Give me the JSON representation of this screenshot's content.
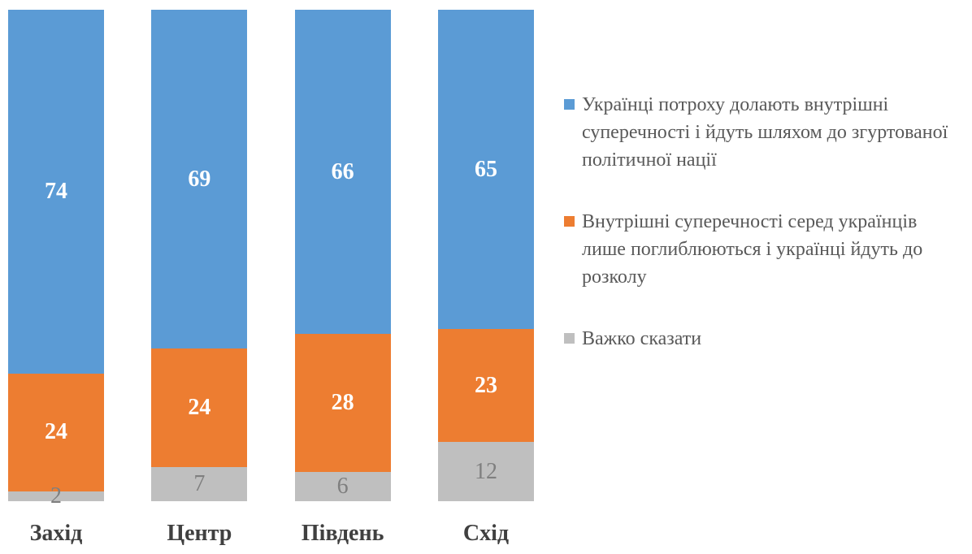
{
  "chart_data": {
    "type": "bar",
    "subtype": "stacked-100-column",
    "title": "",
    "xlabel": "",
    "ylabel": "",
    "ylim": [
      0,
      100
    ],
    "grid": false,
    "axes_visible": false,
    "legend_position": "right",
    "background_color": "#FFFFFF",
    "category_label_color": "#404040",
    "legend_text_color": "#595959",
    "categories": [
      "Захід",
      "Центр",
      "Південь",
      "Схід"
    ],
    "series": [
      {
        "name": "Українці потроху долають внутрішні суперечності і йдуть шляхом до згуртованої політичної нації",
        "color": "#5B9BD5",
        "label_color": "#FFFFFF",
        "label_bold": true,
        "values": [
          74,
          69,
          66,
          65
        ]
      },
      {
        "name": "Внутрішні суперечності серед українців лише поглиблюються і українці йдуть до розколу",
        "color": "#ED7D31",
        "label_color": "#FFFFFF",
        "label_bold": true,
        "values": [
          24,
          24,
          28,
          23
        ]
      },
      {
        "name": "Важко сказати",
        "color": "#BFBFBF",
        "label_color": "#7F7F7F",
        "label_bold": false,
        "values": [
          2,
          7,
          6,
          12
        ]
      }
    ]
  }
}
